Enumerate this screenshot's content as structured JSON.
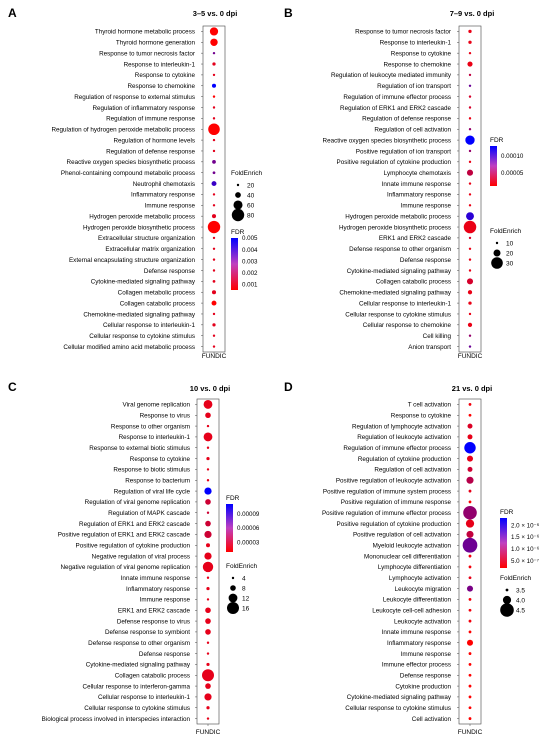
{
  "chart_data": [
    {
      "panel": "A",
      "type": "scatter",
      "title": "3–5 vs. 0 dpi",
      "xlabel": "FUNDIC",
      "categories": [
        "Thyroid hormone metabolic process",
        "Thyroid hormone generation",
        "Response to tumor necrosis factor",
        "Response to interleukin-1",
        "Response to cytokine",
        "Response to chemokine",
        "Regulation of response to external stimulus",
        "Regulation of inflammatory response",
        "Regulation of immune response",
        "Regulation of hydrogen peroxide metabolic process",
        "Regulation of hormone levels",
        "Regulation of defense response",
        "Reactive oxygen species biosynthetic process",
        "Phenol-containing compound metabolic process",
        "Neutrophil chemotaxis",
        "Inflammatory response",
        "Immune response",
        "Hydrogen peroxide metabolic process",
        "Hydrogen peroxide biosynthetic process",
        "Extracellular structure organization",
        "Extracellular matrix organization",
        "External encapsulating structure organization",
        "Defense response",
        "Cytokine-mediated signaling pathway",
        "Collagen metabolic process",
        "Collagen catabolic process",
        "Chemokine-mediated signaling pathway",
        "Cellular response to interleukin-1",
        "Cellular response to cytokine stimulus",
        "Cellular modified amino acid metabolic process"
      ],
      "fold_enrichment": [
        55,
        50,
        20,
        25,
        12,
        30,
        10,
        14,
        8,
        75,
        12,
        12,
        28,
        22,
        35,
        12,
        8,
        30,
        80,
        18,
        18,
        18,
        12,
        22,
        30,
        35,
        18,
        25,
        12,
        18
      ],
      "fdr": [
        0.0005,
        0.0005,
        0.003,
        0.001,
        0.001,
        0.005,
        0.0005,
        0.001,
        0.001,
        0.0005,
        0.001,
        0.001,
        0.003,
        0.003,
        0.004,
        0.001,
        0.001,
        0.001,
        0.0005,
        0.001,
        0.001,
        0.001,
        0.001,
        0.001,
        0.001,
        0.0005,
        0.001,
        0.001,
        0.001,
        0.001
      ],
      "size_legend": {
        "title": "FoldEnrich",
        "values": [
          20,
          40,
          60,
          80
        ],
        "labels": [
          "20",
          "40",
          "60",
          "80"
        ]
      },
      "color_legend": {
        "title": "FDR",
        "range": [
          0.0005,
          0.005
        ],
        "ticks": [
          0.005,
          0.004,
          0.003,
          0.002,
          0.001
        ],
        "labels": [
          "0.005",
          "0.004",
          "0.003",
          "0.002",
          "0.001"
        ]
      },
      "colors": {
        "low": "#ff0000",
        "high": "#0000ff"
      }
    },
    {
      "panel": "B",
      "type": "scatter",
      "title": "7–9 vs. 0 dpi",
      "xlabel": "FUNDIC",
      "categories": [
        "Response to tumor necrosis factor",
        "Response to interleukin-1",
        "Response to cytokine",
        "Response to chemokine",
        "Regulation of leukocyte mediated immunity",
        "Regulation of ion transport",
        "Regulation of immune effector process",
        "Regulation of ERK1 and ERK2 cascade",
        "Regulation of defense response",
        "Regulation of cell activation",
        "Reactive oxygen species biosynthetic process",
        "Positive regulation of ion transport",
        "Positive regulation of cytokine production",
        "Lymphocyte chemotaxis",
        "Innate immune response",
        "Inflammatory response",
        "Immune response",
        "Hydrogen peroxide metabolic process",
        "Hydrogen peroxide biosynthetic process",
        "ERK1 and ERK2 cascade",
        "Defense response to other organism",
        "Defense response",
        "Cytokine-mediated signaling pathway",
        "Collagen catabolic process",
        "Chemokine-mediated signaling pathway",
        "Cellular response to interleukin-1",
        "Cellular response to cytokine stimulus",
        "Cellular response to chemokine",
        "Cell killing",
        "Anion transport"
      ],
      "fold_enrichment": [
        12,
        12,
        8,
        16,
        10,
        6,
        8,
        10,
        6,
        5,
        25,
        8,
        10,
        18,
        8,
        8,
        6,
        22,
        35,
        10,
        6,
        6,
        10,
        18,
        14,
        12,
        6,
        14,
        10,
        6
      ],
      "fdr": [
        2e-05,
        2e-05,
        2e-05,
        2e-05,
        4e-05,
        8e-05,
        3e-05,
        3e-05,
        2e-05,
        6e-05,
        0.00013,
        6e-05,
        2e-05,
        4e-05,
        2e-05,
        2e-05,
        2e-05,
        0.00011,
        2e-05,
        3e-05,
        2e-05,
        2e-05,
        2e-05,
        3e-05,
        2e-05,
        2e-05,
        2e-05,
        2e-05,
        6e-05,
        8e-05
      ],
      "size_legend": {
        "title": "FoldEnrich",
        "values": [
          10,
          20,
          30
        ],
        "labels": [
          "10",
          "20",
          "30"
        ]
      },
      "color_legend": {
        "title": "FDR",
        "range": [
          1e-05,
          0.00013
        ],
        "ticks": [
          0.0001,
          5e-05
        ],
        "labels": [
          "0.00010",
          "0.00005"
        ]
      },
      "colors": {
        "low": "#ff0000",
        "high": "#0000ff"
      }
    },
    {
      "panel": "C",
      "type": "scatter",
      "title": "10 vs. 0 dpi",
      "xlabel": "FUNDIC",
      "categories": [
        "Viral genome replication",
        "Response to virus",
        "Response to other organism",
        "Response to interleukin-1",
        "Response to external biotic stimulus",
        "Response to cytokine",
        "Response to biotic stimulus",
        "Response to bacterium",
        "Regulation of viral life cycle",
        "Regulation of viral genome replication",
        "Regulation of MAPK cascade",
        "Regulation of ERK1 and ERK2 cascade",
        "Positive regulation of ERK1 and ERK2 cascade",
        "Positive regulation of cytokine production",
        "Negative regulation of viral process",
        "Negative regulation of viral genome replication",
        "Innate immune response",
        "Inflammatory response",
        "Immune response",
        "ERK1 and ERK2 cascade",
        "Defense response to virus",
        "Defense response to symbiont",
        "Defense response to other organism",
        "Defense response",
        "Cytokine-mediated signaling pathway",
        "Collagen catabolic process",
        "Cellular response to interferon-gamma",
        "Cellular response to interleukin-1",
        "Cellular response to cytokine stimulus",
        "Biological process involved in interspecies interaction"
      ],
      "fold_enrichment": [
        12,
        8,
        4,
        12,
        4,
        5,
        4,
        4,
        10,
        8,
        4,
        8,
        10,
        6,
        10,
        14,
        4,
        5,
        4,
        8,
        8,
        8,
        4,
        4,
        5,
        16,
        8,
        10,
        5,
        4
      ],
      "fdr": [
        2e-05,
        2e-05,
        2e-05,
        2e-05,
        2e-05,
        2e-05,
        2e-05,
        2e-05,
        0.00011,
        3e-05,
        3e-05,
        3e-05,
        3e-05,
        2e-05,
        2e-05,
        2e-05,
        2e-05,
        2e-05,
        2e-05,
        2e-05,
        2e-05,
        2e-05,
        2e-05,
        2e-05,
        2e-05,
        2e-05,
        2e-05,
        2e-05,
        2e-05,
        2e-05
      ],
      "size_legend": {
        "title": "FoldEnrich",
        "values": [
          4,
          8,
          12,
          16
        ],
        "labels": [
          "4",
          "8",
          "12",
          "16"
        ]
      },
      "color_legend": {
        "title": "FDR",
        "range": [
          1e-05,
          0.00011
        ],
        "ticks": [
          9e-05,
          6e-05,
          3e-05
        ],
        "labels": [
          "0.00009",
          "0.00006",
          "0.00003"
        ]
      },
      "colors": {
        "low": "#ff0000",
        "high": "#0000ff"
      }
    },
    {
      "panel": "D",
      "type": "scatter",
      "title": "21 vs. 0 dpi",
      "xlabel": "FUNDIC",
      "categories": [
        "T cell activation",
        "Response to cytokine",
        "Regulation of lymphocyte activation",
        "Regulation of leukocyte activation",
        "Regulation of immune effector process",
        "Regulation of cytokine production",
        "Regulation of cell activation",
        "Positive regulation of leukocyte activation",
        "Positive regulation of immune system process",
        "Positive regulation of immune response",
        "Positive regulation of immune effector process",
        "Positive regulation of cytokine production",
        "Positive regulation of cell activation",
        "Myeloid leukocyte activation",
        "Mononuclear cell differentiation",
        "Lymphocyte differentiation",
        "Lymphocyte activation",
        "Leukocyte migration",
        "Leukocyte differentiation",
        "Leukocyte cell-cell adhesion",
        "Leukocyte activation",
        "Innate immune response",
        "Inflammatory response",
        "Immune response",
        "Immune effector process",
        "Defense response",
        "Cytokine production",
        "Cytokine-mediated signaling pathway",
        "Cellular response to cytokine stimulus",
        "Cell activation"
      ],
      "fold_enrichment": [
        3.5,
        3.5,
        3.7,
        3.7,
        4.3,
        3.8,
        3.7,
        3.9,
        3.5,
        3.2,
        4.5,
        4.0,
        3.9,
        4.8,
        3.4,
        3.4,
        3.4,
        3.8,
        3.4,
        3.5,
        3.4,
        3.5,
        3.8,
        3.3,
        3.3,
        3.3,
        3.5,
        3.4,
        3.4,
        3.3
      ],
      "fdr": [
        3e-07,
        2e-07,
        5e-07,
        4e-07,
        2.3e-06,
        4e-07,
        6e-07,
        8e-07,
        4e-07,
        2e-07,
        1.1e-06,
        4e-07,
        7e-07,
        1.4e-06,
        3e-07,
        3e-07,
        4e-07,
        1.3e-06,
        3e-07,
        3e-07,
        3e-07,
        2e-07,
        2e-07,
        2e-07,
        2e-07,
        2e-07,
        2e-07,
        2e-07,
        2e-07,
        2e-07
      ],
      "size_legend": {
        "title": "FoldEnrich",
        "values": [
          3.5,
          4.0,
          4.5
        ],
        "labels": [
          "3.5",
          "4.0",
          "4.5"
        ]
      },
      "color_legend": {
        "title": "FDR",
        "range": [
          2e-07,
          2.3e-06
        ],
        "ticks": [
          2e-06,
          1.5e-06,
          1e-06,
          5e-07
        ],
        "labels": [
          "2.0 × 10⁻⁶",
          "1.5 × 10⁻⁶",
          "1.0 × 10⁻⁶",
          "5.0 × 10⁻⁷"
        ]
      },
      "colors": {
        "low": "#ff0000",
        "high": "#0000ff"
      }
    }
  ]
}
